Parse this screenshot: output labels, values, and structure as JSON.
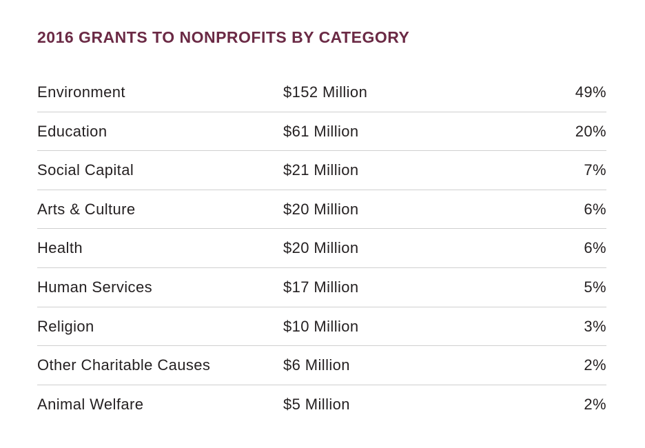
{
  "title": "2016 GRANTS TO NONPROFITS BY CATEGORY",
  "rows": [
    {
      "category": "Environment",
      "amount": "$152 Million",
      "percent": "49%"
    },
    {
      "category": "Education",
      "amount": "$61 Million",
      "percent": "20%"
    },
    {
      "category": "Social Capital",
      "amount": "$21 Million",
      "percent": "7%"
    },
    {
      "category": "Arts & Culture",
      "amount": "$20 Million",
      "percent": "6%"
    },
    {
      "category": "Health",
      "amount": "$20 Million",
      "percent": "6%"
    },
    {
      "category": "Human Services",
      "amount": "$17 Million",
      "percent": "5%"
    },
    {
      "category": "Religion",
      "amount": "$10 Million",
      "percent": "3%"
    },
    {
      "category": "Other Charitable Causes",
      "amount": "$6 Million",
      "percent": "2%"
    },
    {
      "category": "Animal Welfare",
      "amount": "$5 Million",
      "percent": "2%"
    }
  ],
  "colors": {
    "title": "#6b2a45",
    "text": "#231f20",
    "divider": "#cfcfcf"
  }
}
